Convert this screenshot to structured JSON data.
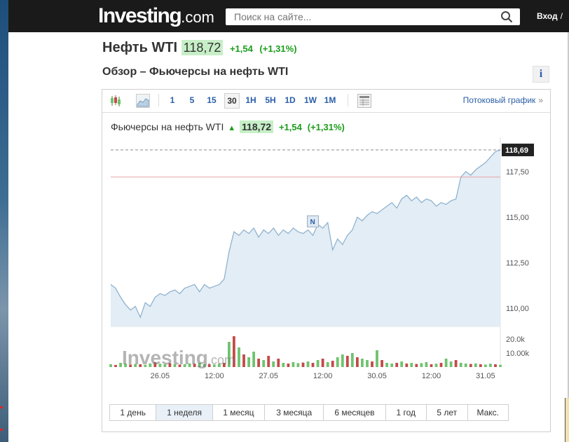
{
  "header": {
    "logo_main": "Investing",
    "logo_domain": ".com",
    "search_placeholder": "Поиск на сайте...",
    "login_label": "Вход",
    "login_sep": "/"
  },
  "instrument": {
    "title": "Нефть WTI",
    "price": "118,72",
    "change": "+1,54",
    "change_pct": "(+1,31%)"
  },
  "overview": {
    "subtitle": "Обзор – Фьючерсы на нефть WTI",
    "info_label": "i"
  },
  "toolbar": {
    "intervals": [
      "1",
      "5",
      "15",
      "30",
      "1H",
      "5H",
      "1D",
      "1W",
      "1M"
    ],
    "selected_interval": "30",
    "stream_label": "Потоковый график",
    "stream_arrow": "»"
  },
  "chart_header": {
    "name": "Фьючерсы на нефть WTI",
    "price": "118,72",
    "change": "+1,54",
    "change_pct": "(+1,31%)"
  },
  "ranges": [
    "1 день",
    "1 неделя",
    "1 месяц",
    "3 месяца",
    "6 месяцев",
    "1 год",
    "5 лет",
    "Макс."
  ],
  "selected_range": "1 неделя",
  "colors": {
    "up": "#1a9c1a",
    "line": "#8fb3cf",
    "area": "#e3edf6",
    "hline": "#e7a3a3",
    "vol_up": "#6fc36f",
    "vol_down": "#c44a4a"
  },
  "chart_data": {
    "type": "area",
    "ylim": [
      109.0,
      119.0
    ],
    "y_ticks": [
      "110,00",
      "112,50",
      "115,00",
      "117,50"
    ],
    "y_tick_values": [
      110.0,
      112.5,
      115.0,
      117.5
    ],
    "last_label": "118,69",
    "last_value": 118.69,
    "ref_line_value": 117.2,
    "x_labels": [
      "26.05",
      "12:00",
      "27.05",
      "12:00",
      "30.05",
      "12:00",
      "31.05"
    ],
    "x_label_index": [
      10,
      21,
      32,
      43,
      54,
      65,
      76
    ],
    "news_marker": "N",
    "news_marker_index": 41,
    "values": [
      111.3,
      111.1,
      110.6,
      110.2,
      109.9,
      110.1,
      109.5,
      110.3,
      110.1,
      110.6,
      110.8,
      110.7,
      110.9,
      111.0,
      110.8,
      111.1,
      111.2,
      111.3,
      110.9,
      111.3,
      111.1,
      111.2,
      111.3,
      111.6,
      113.1,
      114.2,
      114.0,
      114.3,
      114.1,
      114.4,
      113.9,
      114.3,
      114.1,
      114.4,
      114.0,
      114.3,
      114.1,
      114.4,
      114.2,
      114.1,
      114.3,
      114.0,
      114.6,
      114.4,
      114.7,
      113.2,
      113.8,
      113.5,
      114.0,
      114.3,
      115.0,
      114.8,
      115.1,
      115.3,
      115.2,
      115.4,
      115.6,
      115.8,
      115.5,
      116.0,
      116.2,
      115.9,
      116.1,
      115.8,
      116.0,
      115.9,
      115.6,
      115.8,
      115.7,
      115.9,
      116.0,
      117.2,
      117.5,
      117.3,
      117.6,
      117.8,
      118.0,
      118.3,
      118.6,
      118.69
    ],
    "vol_ticks": [
      "20.0k",
      "10.00k"
    ],
    "vol_tick_values": [
      20000,
      10000
    ],
    "volumes": [
      2000,
      1500,
      3000,
      2500,
      1800,
      2200,
      2000,
      1600,
      2600,
      3500,
      2400,
      2000,
      2800,
      2200,
      1800,
      2000,
      2600,
      2400,
      3000,
      2200,
      2000,
      1800,
      2400,
      3000,
      18000,
      22000,
      14000,
      9000,
      7000,
      11000,
      6000,
      5000,
      8000,
      4000,
      6000,
      3000,
      2500,
      3500,
      2800,
      3200,
      4000,
      3000,
      5000,
      6000,
      3500,
      4500,
      7000,
      9000,
      8000,
      10000,
      7000,
      6000,
      5000,
      4000,
      12000,
      5000,
      3000,
      2500,
      3000,
      4000,
      2500,
      3000,
      2200,
      2800,
      3500,
      2000,
      2400,
      3000,
      6000,
      4000,
      5000,
      3000,
      2500,
      2200,
      2600,
      2000,
      1800,
      2400,
      2000,
      1600
    ],
    "vol_up_flags": [
      1,
      0,
      1,
      1,
      0,
      1,
      0,
      1,
      1,
      0,
      1,
      1,
      0,
      1,
      0,
      1,
      1,
      0,
      1,
      1,
      0,
      1,
      1,
      0,
      1,
      0,
      1,
      0,
      1,
      1,
      0,
      1,
      0,
      1,
      0,
      1,
      0,
      1,
      1,
      0,
      1,
      0,
      1,
      0,
      1,
      0,
      1,
      1,
      0,
      1,
      0,
      1,
      1,
      0,
      1,
      0,
      1,
      1,
      0,
      1,
      0,
      1,
      0,
      1,
      1,
      0,
      1,
      0,
      1,
      1,
      0,
      1,
      1,
      0,
      1,
      0,
      1,
      1,
      0,
      1
    ]
  },
  "watermark": {
    "main": "Investing",
    "domain": ".com"
  }
}
